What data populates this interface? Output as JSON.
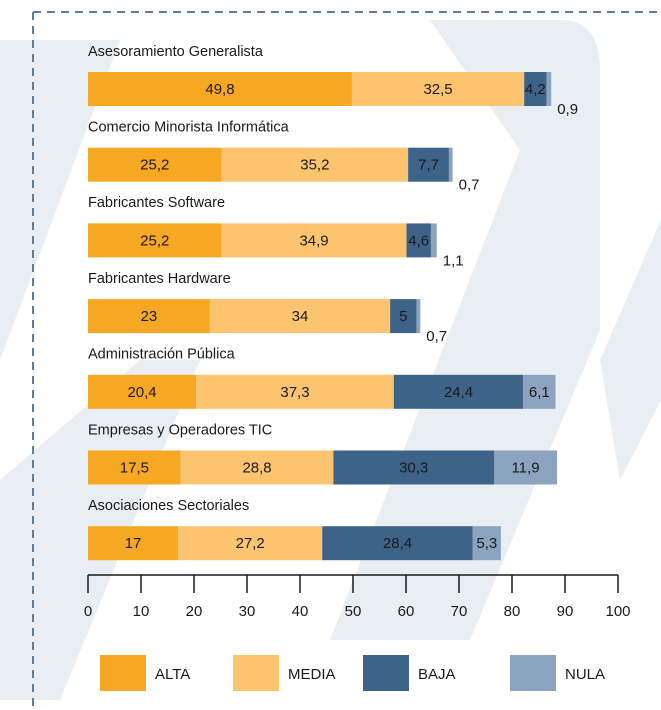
{
  "chart_data": {
    "type": "stacked-barh",
    "categories": [
      "Asesoramiento Generalista",
      "Comercio Minorista Informática",
      "Fabricantes Software",
      "Fabricantes Hardware",
      "Administración Pública",
      "Empresas y Operadores TIC",
      "Asociaciones Sectoriales"
    ],
    "series": [
      {
        "name": "ALTA",
        "color": "#f7a823",
        "values": [
          49.8,
          25.2,
          25.2,
          23,
          20.4,
          17.5,
          17
        ],
        "value_labels": [
          "49,8",
          "25,2",
          "25,2",
          "23",
          "20,4",
          "17,5",
          "17"
        ]
      },
      {
        "name": "MEDIA",
        "color": "#fdc46f",
        "values": [
          32.5,
          35.2,
          34.9,
          34,
          37.3,
          28.8,
          27.2
        ],
        "value_labels": [
          "32,5",
          "35,2",
          "34,9",
          "34",
          "37,3",
          "28,8",
          "27,2"
        ]
      },
      {
        "name": "BAJA",
        "color": "#3e6388",
        "values": [
          4.2,
          7.7,
          4.6,
          5,
          24.4,
          30.3,
          28.4
        ],
        "value_labels": [
          "4,2",
          "7,7",
          "4,6",
          "5",
          "24,4",
          "30,3",
          "28,4"
        ]
      },
      {
        "name": "NULA",
        "color": "#8ca3bf",
        "values": [
          0.9,
          0.7,
          1.1,
          0.7,
          6.1,
          11.9,
          5.3
        ],
        "value_labels": [
          "0,9",
          "0,7",
          "1,1",
          "0,7",
          "6,1",
          "11,9",
          "5,3"
        ]
      }
    ],
    "xlim": [
      0,
      100
    ],
    "xticks": [
      0,
      10,
      20,
      30,
      40,
      50,
      60,
      70,
      80,
      90,
      100
    ]
  }
}
